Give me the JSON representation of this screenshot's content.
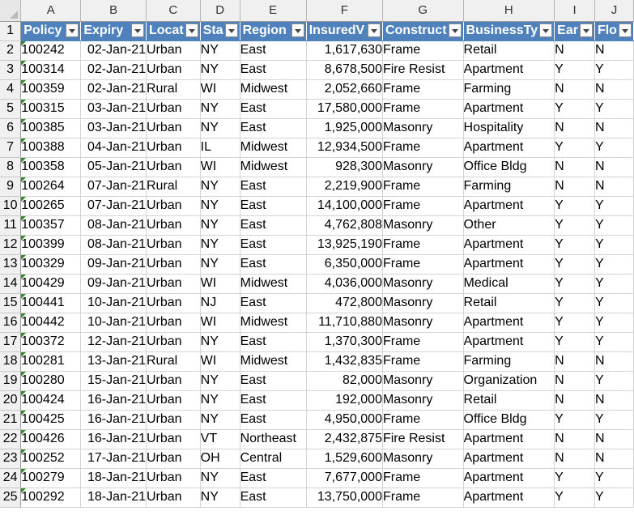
{
  "column_letters": [
    "A",
    "B",
    "C",
    "D",
    "E",
    "F",
    "G",
    "H",
    "I",
    "J"
  ],
  "headers": [
    "Policy",
    "Expiry",
    "Locat",
    "Sta",
    "Region",
    "InsuredV",
    "Construct",
    "BusinessTy",
    "Ear",
    "Flo"
  ],
  "rows": [
    {
      "num": "2",
      "cells": [
        "100242",
        "02-Jan-21",
        "Urban",
        "NY",
        "East",
        "1,617,630",
        "Frame",
        "Retail",
        "N",
        "N"
      ]
    },
    {
      "num": "3",
      "cells": [
        "100314",
        "02-Jan-21",
        "Urban",
        "NY",
        "East",
        "8,678,500",
        "Fire Resist",
        "Apartment",
        "Y",
        "Y"
      ]
    },
    {
      "num": "4",
      "cells": [
        "100359",
        "02-Jan-21",
        "Rural",
        "WI",
        "Midwest",
        "2,052,660",
        "Frame",
        "Farming",
        "N",
        "N"
      ]
    },
    {
      "num": "5",
      "cells": [
        "100315",
        "03-Jan-21",
        "Urban",
        "NY",
        "East",
        "17,580,000",
        "Frame",
        "Apartment",
        "Y",
        "Y"
      ]
    },
    {
      "num": "6",
      "cells": [
        "100385",
        "03-Jan-21",
        "Urban",
        "NY",
        "East",
        "1,925,000",
        "Masonry",
        "Hospitality",
        "N",
        "N"
      ]
    },
    {
      "num": "7",
      "cells": [
        "100388",
        "04-Jan-21",
        "Urban",
        "IL",
        "Midwest",
        "12,934,500",
        "Frame",
        "Apartment",
        "Y",
        "Y"
      ]
    },
    {
      "num": "8",
      "cells": [
        "100358",
        "05-Jan-21",
        "Urban",
        "WI",
        "Midwest",
        "928,300",
        "Masonry",
        "Office Bldg",
        "N",
        "N"
      ]
    },
    {
      "num": "9",
      "cells": [
        "100264",
        "07-Jan-21",
        "Rural",
        "NY",
        "East",
        "2,219,900",
        "Frame",
        "Farming",
        "N",
        "N"
      ]
    },
    {
      "num": "10",
      "cells": [
        "100265",
        "07-Jan-21",
        "Urban",
        "NY",
        "East",
        "14,100,000",
        "Frame",
        "Apartment",
        "Y",
        "Y"
      ]
    },
    {
      "num": "11",
      "cells": [
        "100357",
        "08-Jan-21",
        "Urban",
        "NY",
        "East",
        "4,762,808",
        "Masonry",
        "Other",
        "Y",
        "Y"
      ]
    },
    {
      "num": "12",
      "cells": [
        "100399",
        "08-Jan-21",
        "Urban",
        "NY",
        "East",
        "13,925,190",
        "Frame",
        "Apartment",
        "Y",
        "Y"
      ]
    },
    {
      "num": "13",
      "cells": [
        "100329",
        "09-Jan-21",
        "Urban",
        "NY",
        "East",
        "6,350,000",
        "Frame",
        "Apartment",
        "Y",
        "Y"
      ]
    },
    {
      "num": "14",
      "cells": [
        "100429",
        "09-Jan-21",
        "Urban",
        "WI",
        "Midwest",
        "4,036,000",
        "Masonry",
        "Medical",
        "Y",
        "Y"
      ]
    },
    {
      "num": "15",
      "cells": [
        "100441",
        "10-Jan-21",
        "Urban",
        "NJ",
        "East",
        "472,800",
        "Masonry",
        "Retail",
        "Y",
        "Y"
      ]
    },
    {
      "num": "16",
      "cells": [
        "100442",
        "10-Jan-21",
        "Urban",
        "WI",
        "Midwest",
        "11,710,880",
        "Masonry",
        "Apartment",
        "Y",
        "Y"
      ]
    },
    {
      "num": "17",
      "cells": [
        "100372",
        "12-Jan-21",
        "Urban",
        "NY",
        "East",
        "1,370,300",
        "Frame",
        "Apartment",
        "Y",
        "Y"
      ]
    },
    {
      "num": "18",
      "cells": [
        "100281",
        "13-Jan-21",
        "Rural",
        "WI",
        "Midwest",
        "1,432,835",
        "Frame",
        "Farming",
        "N",
        "N"
      ]
    },
    {
      "num": "19",
      "cells": [
        "100280",
        "15-Jan-21",
        "Urban",
        "NY",
        "East",
        "82,000",
        "Masonry",
        "Organization",
        "N",
        "Y"
      ]
    },
    {
      "num": "20",
      "cells": [
        "100424",
        "16-Jan-21",
        "Urban",
        "NY",
        "East",
        "192,000",
        "Masonry",
        "Retail",
        "N",
        "N"
      ]
    },
    {
      "num": "21",
      "cells": [
        "100425",
        "16-Jan-21",
        "Urban",
        "NY",
        "East",
        "4,950,000",
        "Frame",
        "Office Bldg",
        "Y",
        "Y"
      ]
    },
    {
      "num": "22",
      "cells": [
        "100426",
        "16-Jan-21",
        "Urban",
        "VT",
        "Northeast",
        "2,432,875",
        "Fire Resist",
        "Apartment",
        "N",
        "N"
      ]
    },
    {
      "num": "23",
      "cells": [
        "100252",
        "17-Jan-21",
        "Urban",
        "OH",
        "Central",
        "1,529,600",
        "Masonry",
        "Apartment",
        "N",
        "N"
      ]
    },
    {
      "num": "24",
      "cells": [
        "100279",
        "18-Jan-21",
        "Urban",
        "NY",
        "East",
        "7,677,000",
        "Frame",
        "Apartment",
        "Y",
        "Y"
      ]
    },
    {
      "num": "25",
      "cells": [
        "100292",
        "18-Jan-21",
        "Urban",
        "NY",
        "East",
        "13,750,000",
        "Frame",
        "Apartment",
        "Y",
        "Y"
      ]
    }
  ],
  "colors": {
    "header_fill": "#4f81bd",
    "header_text": "#ffffff",
    "gridline": "#d4d4d4",
    "row_col_header": "#f0f0f0",
    "error_indicator": "#2e8b2e"
  },
  "icons": {
    "filter": "filter-dropdown-icon",
    "select_all": "select-all-triangle-icon",
    "number_as_text": "number-stored-as-text-indicator-icon"
  }
}
